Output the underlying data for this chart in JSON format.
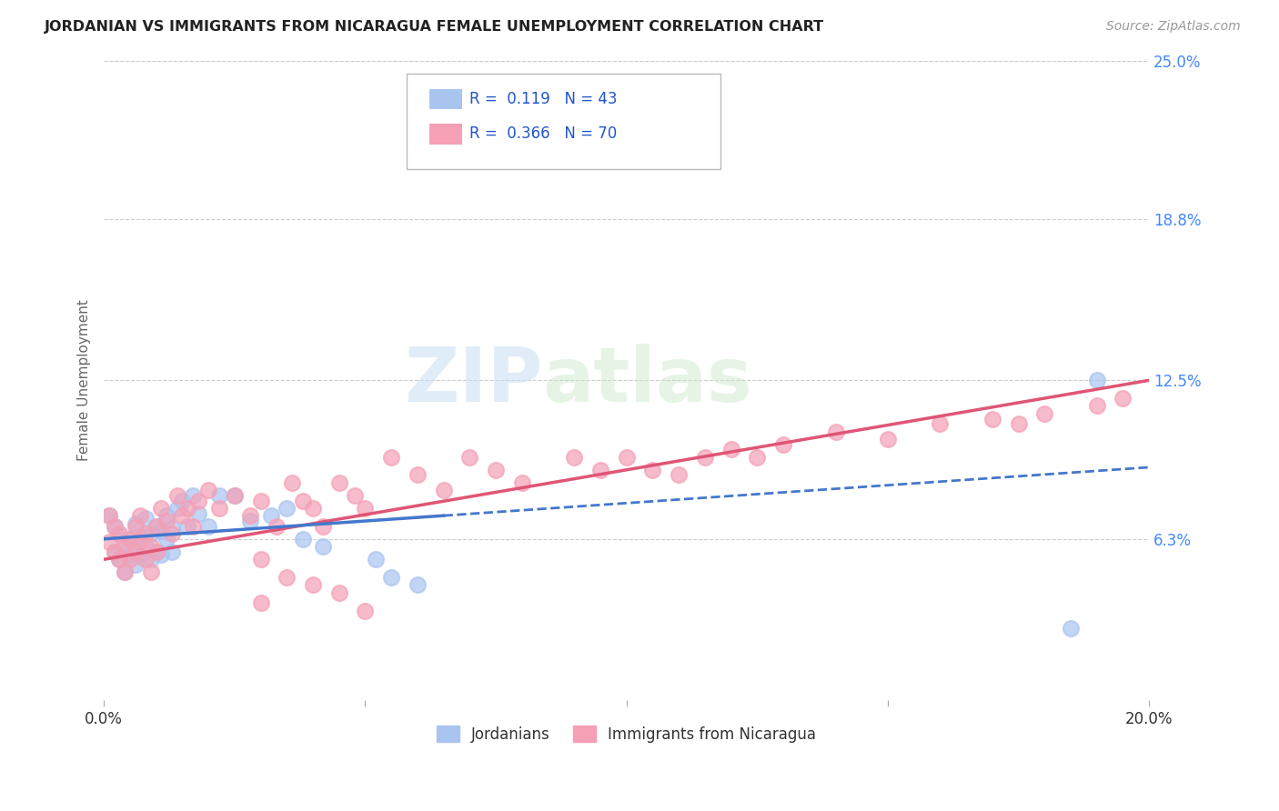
{
  "title": "JORDANIAN VS IMMIGRANTS FROM NICARAGUA FEMALE UNEMPLOYMENT CORRELATION CHART",
  "source": "Source: ZipAtlas.com",
  "ylabel": "Female Unemployment",
  "x_min": 0.0,
  "x_max": 0.2,
  "y_min": 0.0,
  "y_max": 0.25,
  "y_tick_labels_right": [
    "25.0%",
    "18.8%",
    "12.5%",
    "6.3%"
  ],
  "y_tick_positions_right": [
    0.25,
    0.188,
    0.125,
    0.063
  ],
  "jordanians_R": "0.119",
  "jordanians_N": "43",
  "nicaragua_R": "0.366",
  "nicaragua_N": "70",
  "jordanians_color": "#aac4f0",
  "nicaragua_color": "#f5a0b5",
  "trend_jordan_color": "#4477cc",
  "trend_nicaragua_color": "#e05575",
  "background_color": "#ffffff",
  "grid_color": "#cccccc",
  "legend_label1": "Jordanians",
  "legend_label2": "Immigrants from Nicaragua",
  "watermark_zip": "ZIP",
  "watermark_atlas": "atlas",
  "jordanians_x": [
    0.001,
    0.002,
    0.002,
    0.003,
    0.003,
    0.004,
    0.004,
    0.005,
    0.005,
    0.006,
    0.006,
    0.007,
    0.007,
    0.008,
    0.008,
    0.009,
    0.009,
    0.01,
    0.01,
    0.011,
    0.011,
    0.012,
    0.012,
    0.013,
    0.013,
    0.014,
    0.015,
    0.016,
    0.017,
    0.018,
    0.02,
    0.022,
    0.025,
    0.028,
    0.032,
    0.035,
    0.038,
    0.042,
    0.052,
    0.055,
    0.06,
    0.185,
    0.19
  ],
  "jordanians_y": [
    0.072,
    0.068,
    0.058,
    0.065,
    0.055,
    0.06,
    0.05,
    0.063,
    0.057,
    0.069,
    0.053,
    0.064,
    0.056,
    0.071,
    0.06,
    0.065,
    0.055,
    0.068,
    0.058,
    0.066,
    0.057,
    0.072,
    0.063,
    0.067,
    0.058,
    0.075,
    0.078,
    0.068,
    0.08,
    0.073,
    0.068,
    0.08,
    0.08,
    0.07,
    0.072,
    0.075,
    0.063,
    0.06,
    0.055,
    0.048,
    0.045,
    0.028,
    0.125
  ],
  "nicaragua_x": [
    0.001,
    0.001,
    0.002,
    0.002,
    0.003,
    0.003,
    0.004,
    0.004,
    0.005,
    0.005,
    0.006,
    0.006,
    0.007,
    0.007,
    0.008,
    0.008,
    0.009,
    0.009,
    0.01,
    0.01,
    0.011,
    0.012,
    0.013,
    0.014,
    0.015,
    0.016,
    0.017,
    0.018,
    0.02,
    0.022,
    0.025,
    0.028,
    0.03,
    0.033,
    0.036,
    0.038,
    0.04,
    0.042,
    0.045,
    0.048,
    0.05,
    0.055,
    0.06,
    0.065,
    0.07,
    0.075,
    0.08,
    0.09,
    0.095,
    0.1,
    0.105,
    0.11,
    0.115,
    0.12,
    0.125,
    0.13,
    0.14,
    0.15,
    0.16,
    0.17,
    0.175,
    0.18,
    0.19,
    0.195,
    0.03,
    0.035,
    0.04,
    0.045,
    0.03,
    0.05
  ],
  "nicaragua_y": [
    0.072,
    0.062,
    0.068,
    0.058,
    0.065,
    0.055,
    0.06,
    0.05,
    0.063,
    0.055,
    0.068,
    0.058,
    0.072,
    0.062,
    0.065,
    0.055,
    0.06,
    0.05,
    0.068,
    0.058,
    0.075,
    0.07,
    0.065,
    0.08,
    0.072,
    0.075,
    0.068,
    0.078,
    0.082,
    0.075,
    0.08,
    0.072,
    0.078,
    0.068,
    0.085,
    0.078,
    0.075,
    0.068,
    0.085,
    0.08,
    0.075,
    0.095,
    0.088,
    0.082,
    0.095,
    0.09,
    0.085,
    0.095,
    0.09,
    0.095,
    0.09,
    0.088,
    0.095,
    0.098,
    0.095,
    0.1,
    0.105,
    0.102,
    0.108,
    0.11,
    0.108,
    0.112,
    0.115,
    0.118,
    0.055,
    0.048,
    0.045,
    0.042,
    0.038,
    0.035
  ],
  "trend_jordan_x0": 0.0,
  "trend_jordan_y0": 0.063,
  "trend_jordan_x1": 0.2,
  "trend_jordan_y1": 0.091,
  "trend_nicaragua_x0": 0.0,
  "trend_nicaragua_y0": 0.055,
  "trend_nicaragua_x1": 0.2,
  "trend_nicaragua_y1": 0.125
}
